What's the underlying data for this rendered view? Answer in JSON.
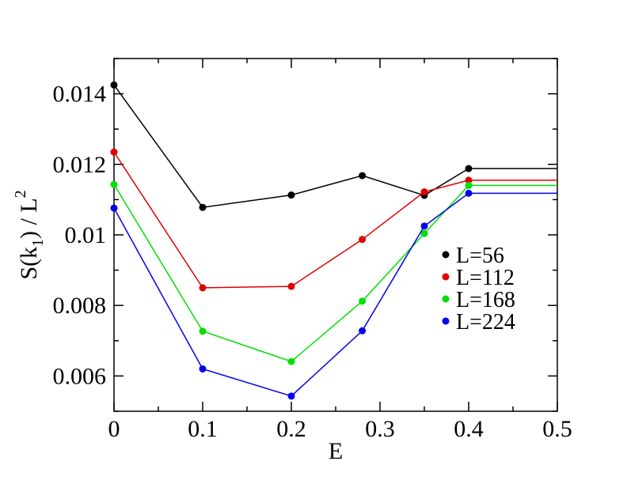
{
  "chart_data": {
    "type": "line",
    "xlabel": "E",
    "ylabel": {
      "prefix": "S(k",
      "sub": "1",
      "middle": ") / L",
      "sup": "2"
    },
    "xlim": [
      0,
      0.5
    ],
    "ylim": [
      0.005,
      0.015
    ],
    "x_ticks": [
      0,
      0.1,
      0.2,
      0.3,
      0.4,
      0.5
    ],
    "x_tick_labels": [
      "0",
      "0.1",
      "0.2",
      "0.3",
      "0.4",
      "0.5"
    ],
    "y_ticks": [
      0.006,
      0.008,
      0.01,
      0.012,
      0.014
    ],
    "y_tick_labels": [
      "0.006",
      "0.008",
      "0.01",
      "0.012",
      "0.014"
    ],
    "grid": false,
    "legend_position": "right",
    "series": [
      {
        "name": "L=56",
        "color": "#000000",
        "x": [
          0,
          0.1,
          0.2,
          0.28,
          0.35,
          0.4,
          0.5
        ],
        "y": [
          0.01425,
          0.01078,
          0.01113,
          0.01168,
          0.01112,
          0.01188,
          0.01188
        ]
      },
      {
        "name": "L=112",
        "color": "#e00000",
        "x": [
          0,
          0.1,
          0.2,
          0.28,
          0.35,
          0.4,
          0.5
        ],
        "y": [
          0.01235,
          0.0085,
          0.00854,
          0.00987,
          0.01122,
          0.01155,
          0.01155
        ]
      },
      {
        "name": "L=168",
        "color": "#00e000",
        "x": [
          0,
          0.1,
          0.2,
          0.28,
          0.35,
          0.4,
          0.5
        ],
        "y": [
          0.01143,
          0.00727,
          0.00641,
          0.00812,
          0.01004,
          0.0114,
          0.0114
        ]
      },
      {
        "name": "L=224",
        "color": "#0000ee",
        "x": [
          0,
          0.1,
          0.2,
          0.28,
          0.35,
          0.4,
          0.5
        ],
        "y": [
          0.01076,
          0.0062,
          0.00543,
          0.00728,
          0.01025,
          0.01118,
          0.01118
        ]
      }
    ],
    "marker_points": 6
  }
}
